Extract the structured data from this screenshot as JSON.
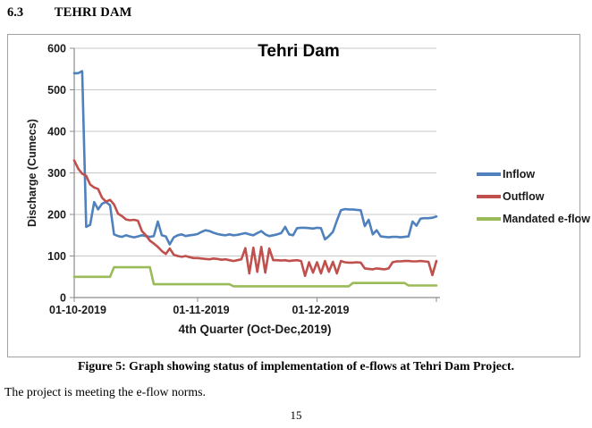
{
  "heading": {
    "number": "6.3",
    "title": "TEHRI DAM"
  },
  "caption": "Figure 5: Graph showing status of implementation of e-flows at Tehri Dam Project.",
  "body_text": "The project is  meeting the e-flow norms.",
  "page_number": "15",
  "chart_data": {
    "type": "line",
    "title": "Tehri Dam",
    "xlabel": "4th Quarter (Oct-Dec,2019)",
    "ylabel": "Discharge (Cumecs)",
    "ylim": [
      0,
      600
    ],
    "yticks": [
      0,
      100,
      200,
      300,
      400,
      500,
      600
    ],
    "xticks": [
      "01-10-2019",
      "01-11-2019",
      "01-12-2019"
    ],
    "xtick_day_index": [
      0,
      31,
      61
    ],
    "n_days": 92,
    "grid": true,
    "legend_position": "right",
    "grid_color": "#c8c8c8",
    "axis_color": "#8c8c8c",
    "series": [
      {
        "name": "Inflow",
        "color": "#4F81BD",
        "values": [
          540,
          540,
          545,
          170,
          175,
          230,
          212,
          226,
          230,
          222,
          152,
          148,
          146,
          150,
          147,
          145,
          147,
          150,
          148,
          146,
          148,
          183,
          150,
          147,
          128,
          145,
          150,
          152,
          148,
          150,
          151,
          153,
          158,
          162,
          160,
          156,
          153,
          151,
          150,
          152,
          150,
          151,
          153,
          155,
          152,
          150,
          155,
          160,
          152,
          148,
          150,
          152,
          155,
          170,
          152,
          150,
          167,
          168,
          168,
          167,
          166,
          168,
          167,
          140,
          148,
          158,
          185,
          210,
          213,
          212,
          212,
          211,
          210,
          172,
          187,
          152,
          162,
          147,
          146,
          145,
          146,
          146,
          145,
          146,
          147,
          183,
          173,
          190,
          191,
          191,
          192,
          195
        ]
      },
      {
        "name": "Outflow",
        "color": "#C0504D",
        "values": [
          330,
          310,
          298,
          293,
          272,
          265,
          261,
          240,
          231,
          235,
          224,
          202,
          196,
          188,
          186,
          187,
          185,
          160,
          150,
          137,
          130,
          122,
          112,
          105,
          118,
          103,
          100,
          98,
          100,
          97,
          95,
          95,
          94,
          93,
          92,
          94,
          93,
          91,
          92,
          90,
          88,
          90,
          92,
          119,
          58,
          120,
          62,
          122,
          60,
          118,
          90,
          90,
          89,
          90,
          88,
          89,
          90,
          88,
          52,
          85,
          60,
          85,
          58,
          88,
          62,
          86,
          58,
          88,
          85,
          84,
          84,
          85,
          84,
          70,
          69,
          68,
          70,
          69,
          68,
          70,
          85,
          87,
          87,
          88,
          88,
          87,
          87,
          88,
          87,
          86,
          54,
          88
        ]
      },
      {
        "name": "Mandated e-flow",
        "color": "#9BBB59",
        "values": [
          50,
          50,
          50,
          50,
          50,
          50,
          50,
          50,
          50,
          50,
          73,
          73,
          73,
          73,
          73,
          73,
          73,
          73,
          73,
          73,
          32,
          32,
          32,
          32,
          32,
          32,
          32,
          32,
          32,
          32,
          32,
          32,
          32,
          32,
          32,
          32,
          32,
          32,
          32,
          32,
          27,
          27,
          27,
          27,
          27,
          27,
          27,
          27,
          27,
          27,
          27,
          27,
          27,
          27,
          27,
          27,
          27,
          27,
          27,
          27,
          27,
          27,
          27,
          27,
          27,
          27,
          27,
          27,
          27,
          27,
          35,
          35,
          35,
          35,
          35,
          35,
          35,
          35,
          35,
          35,
          35,
          35,
          35,
          35,
          29,
          29,
          29,
          29,
          29,
          29,
          29,
          29
        ]
      }
    ]
  }
}
